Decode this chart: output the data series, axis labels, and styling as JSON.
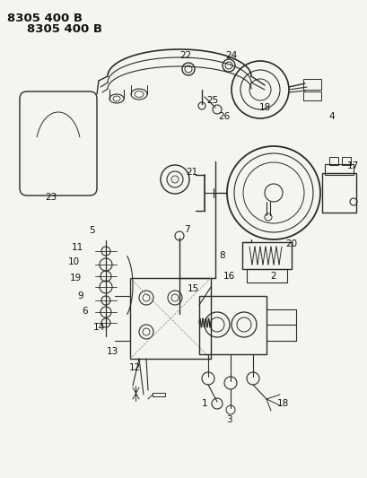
{
  "title": "8305 400 B",
  "bg_color": "#f5f5f0",
  "line_color": "#2a2a2a",
  "text_color": "#111111",
  "fig_width": 4.1,
  "fig_height": 5.33,
  "dpi": 100,
  "lw_main": 1.0,
  "lw_thin": 0.6,
  "label_fs": 7.5,
  "title_fs": 9.5
}
